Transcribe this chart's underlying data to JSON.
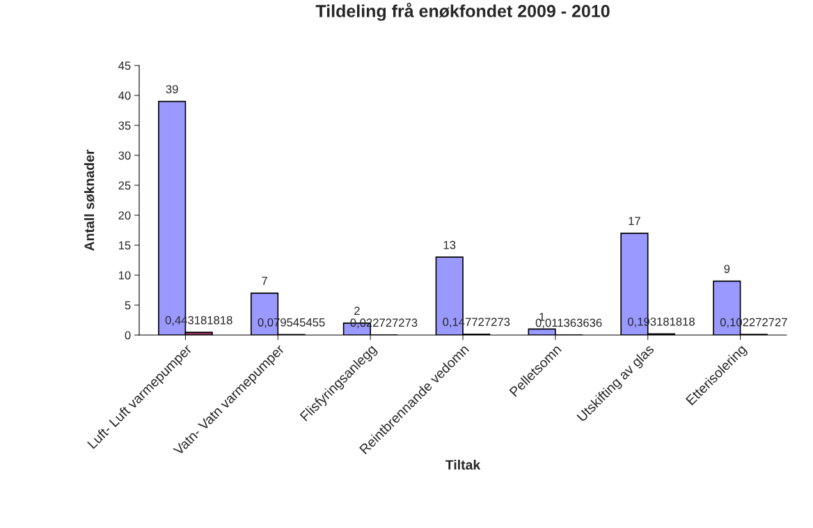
{
  "chart_data": {
    "type": "bar",
    "title": "Tildeling frå enøkfondet 2009 - 2010",
    "xlabel": "Tiltak",
    "ylabel": "Antall søknader",
    "categories": [
      "Luft- Luft varmepumper",
      "Vatn- Vatn varmepumper",
      "Flisfyringsanlegg",
      "Reintbrennande vedomn",
      "Pelletsomn",
      "Utskifting av glas",
      "Etterisolering"
    ],
    "series": [
      {
        "color": "#9999ff",
        "values": [
          39,
          7,
          2,
          13,
          1,
          17,
          9
        ],
        "value_labels": [
          "39",
          "7",
          "2",
          "13",
          "1",
          "17",
          "9"
        ]
      },
      {
        "color": "#993366",
        "values": [
          0.443181818,
          0.079545455,
          0.022727273,
          0.147727273,
          0.011363636,
          0.193181818,
          0.102272727
        ],
        "value_labels": [
          "0,443181818",
          "0,079545455",
          "0,022727273",
          "0,147727273",
          "0,011363636",
          "0,193181818",
          "0,102272727"
        ]
      }
    ],
    "ylim": [
      0,
      45
    ],
    "yticks": [
      0,
      5,
      10,
      15,
      20,
      25,
      30,
      35,
      40,
      45
    ],
    "grid": false,
    "legend": false
  }
}
